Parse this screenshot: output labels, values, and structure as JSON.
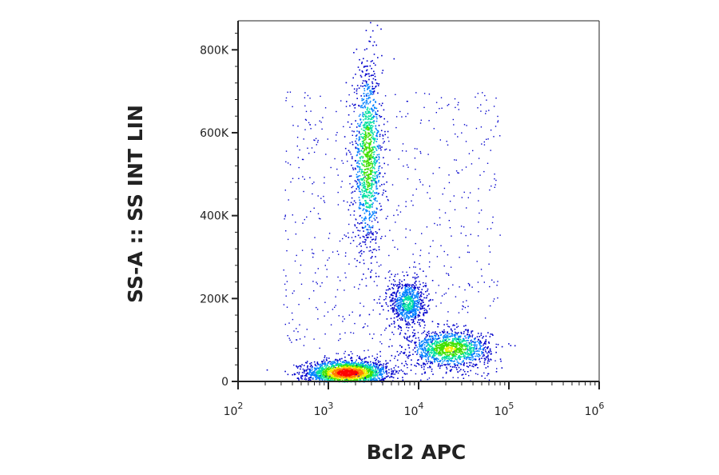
{
  "chart_data": {
    "type": "scatter",
    "subtype": "flow-cytometry-density-dot-plot",
    "xlabel": "Bcl2 APC",
    "ylabel": "SS-A :: SS INT LIN",
    "x_scale": "log",
    "y_scale": "linear",
    "xlim": [
      100,
      1000000
    ],
    "ylim": [
      0,
      870000
    ],
    "x_ticks": [
      {
        "value": 100,
        "base": "10",
        "exp": "2"
      },
      {
        "value": 1000,
        "base": "10",
        "exp": "3"
      },
      {
        "value": 10000,
        "base": "10",
        "exp": "4"
      },
      {
        "value": 100000,
        "base": "10",
        "exp": "5"
      },
      {
        "value": 1000000,
        "base": "10",
        "exp": "6"
      }
    ],
    "y_ticks": [
      {
        "value": 0,
        "label": "0"
      },
      {
        "value": 200000,
        "label": "200K"
      },
      {
        "value": 400000,
        "label": "400K"
      },
      {
        "value": 600000,
        "label": "600K"
      },
      {
        "value": 800000,
        "label": "800K"
      }
    ],
    "grid": false,
    "legend": "none",
    "color_scale": [
      "#0000cc",
      "#0080ff",
      "#00e0a0",
      "#40e000",
      "#f0f000",
      "#ff8000",
      "#ff0000"
    ],
    "populations": [
      {
        "x_center": 1600,
        "y_center": 22000,
        "x_spread_decades": 0.22,
        "y_spread": 15000,
        "relative_density": 1.0
      },
      {
        "x_center": 2700,
        "y_center": 540000,
        "x_spread_decades": 0.08,
        "y_spread": 110000,
        "relative_density": 0.55
      },
      {
        "x_center": 22000,
        "y_center": 80000,
        "x_spread_decades": 0.22,
        "y_spread": 22000,
        "relative_density": 0.6
      },
      {
        "x_center": 7500,
        "y_center": 190000,
        "x_spread_decades": 0.1,
        "y_spread": 30000,
        "relative_density": 0.35
      }
    ]
  }
}
